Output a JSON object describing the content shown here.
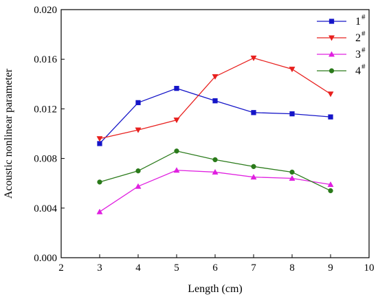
{
  "chart_data": {
    "type": "line",
    "xlabel": "Length (cm)",
    "ylabel": "Acoustic nonlinear parameter",
    "xlim": [
      2,
      10
    ],
    "ylim": [
      0.0,
      0.02
    ],
    "x_ticks": [
      "2",
      "3",
      "4",
      "5",
      "6",
      "7",
      "8",
      "9",
      "10"
    ],
    "y_ticks": [
      "0.000",
      "0.004",
      "0.008",
      "0.012",
      "0.016",
      "0.020"
    ],
    "x": [
      3,
      4,
      5,
      6,
      7,
      8,
      9
    ],
    "grid": false,
    "legend_position": "top-right",
    "series": [
      {
        "name": "1",
        "sup": "#",
        "color": "#1515c8",
        "marker": "square",
        "values": [
          0.0092,
          0.0125,
          0.01365,
          0.01265,
          0.0117,
          0.0116,
          0.01135
        ]
      },
      {
        "name": "2",
        "sup": "#",
        "color": "#e8201e",
        "marker": "triangle-down",
        "values": [
          0.0096,
          0.0103,
          0.0111,
          0.0146,
          0.0161,
          0.0152,
          0.0132
        ]
      },
      {
        "name": "3",
        "sup": "#",
        "color": "#e020e0",
        "marker": "triangle-up",
        "values": [
          0.0037,
          0.00575,
          0.00705,
          0.0069,
          0.0065,
          0.0064,
          0.0059
        ]
      },
      {
        "name": "4",
        "sup": "#",
        "color": "#2a7a1a",
        "marker": "circle",
        "values": [
          0.0061,
          0.007,
          0.0086,
          0.0079,
          0.00735,
          0.0069,
          0.0054
        ]
      }
    ]
  }
}
